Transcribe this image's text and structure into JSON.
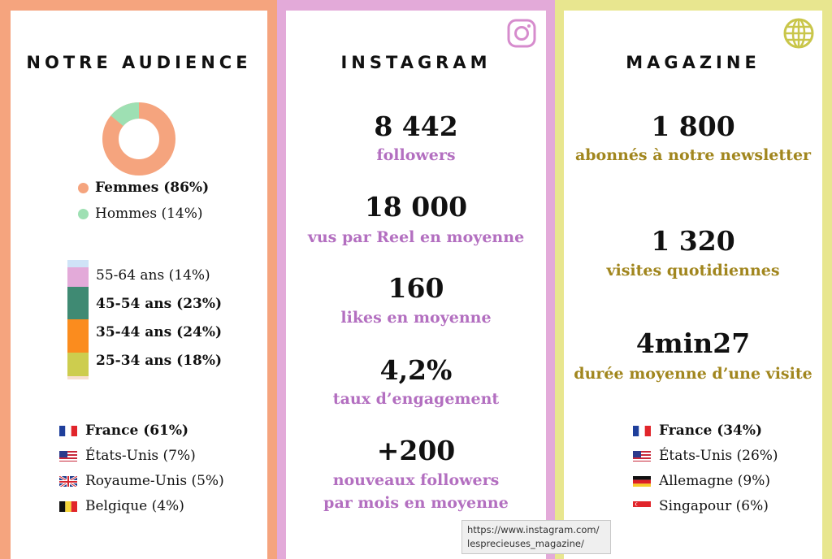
{
  "audience": {
    "title": "NOTRE AUDIENCE",
    "gender": [
      {
        "label": "Femmes (86%)",
        "percent": 86,
        "color": "#f5a47e"
      },
      {
        "label": "Hommes (14%)",
        "percent": 14,
        "color": "#9ee0b3"
      }
    ],
    "age": [
      {
        "label": "55-64 ans (14%)",
        "percent": 14,
        "color": "#e3aad9"
      },
      {
        "label": "45-54 ans (23%)",
        "percent": 23,
        "color": "#3f8a73"
      },
      {
        "label": "35-44 ans (24%)",
        "percent": 24,
        "color": "#fb8c1e"
      },
      {
        "label": "25-34 ans (18%)",
        "percent": 18,
        "color": "#cdcd4e"
      }
    ],
    "countries": [
      {
        "label": "France (61%)",
        "flag": "fr-flag"
      },
      {
        "label": "États-Unis (7%)",
        "flag": "us-flag"
      },
      {
        "label": "Royaume-Unis (5%)",
        "flag": "uk-flag"
      },
      {
        "label": "Belgique (4%)",
        "flag": "be-flag"
      }
    ]
  },
  "instagram": {
    "title": "INSTAGRAM",
    "icon": "instagram-icon",
    "stats": [
      {
        "value": "8 442",
        "label": "followers"
      },
      {
        "value": "18 000",
        "label": "vus par Reel en moyenne"
      },
      {
        "value": "160",
        "label": "likes en moyenne"
      },
      {
        "value": "4,2%",
        "label": "taux d’engagement"
      },
      {
        "value": "+200",
        "label": "nouveaux followers",
        "label2": "par mois en moyenne"
      }
    ]
  },
  "magazine": {
    "title": "MAGAZINE",
    "icon": "globe-icon",
    "stats": [
      {
        "value": "1 800",
        "label": "abonnés à notre newsletter"
      },
      {
        "value": "1 320",
        "label": "visites quotidiennes"
      },
      {
        "value": "4min27",
        "label": "durée moyenne d’une visite"
      }
    ],
    "countries": [
      {
        "label": "France (34%)",
        "flag": "fr-flag"
      },
      {
        "label": "États-Unis (26%)",
        "flag": "us-flag"
      },
      {
        "label": "Allemagne (9%)",
        "flag": "de-flag"
      },
      {
        "label": "Singapour (6%)",
        "flag": "sg-flag"
      }
    ]
  },
  "tooltip": {
    "line1": "https://www.instagram.com/",
    "line2": "lesprecieuses_magazine/"
  },
  "colors": {
    "audience_border": "#f5a47e",
    "instagram_border": "#e3aad9",
    "magazine_border": "#e8e68f",
    "instagram_text": "#b36fc0",
    "magazine_text": "#a1861e"
  }
}
